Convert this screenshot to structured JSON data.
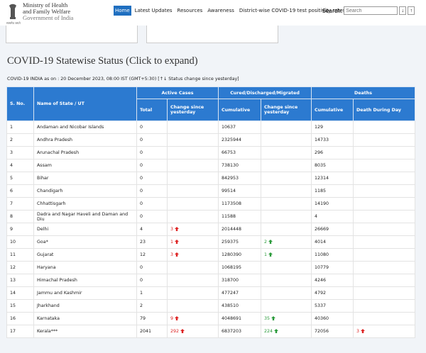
{
  "header": {
    "ministry": [
      "Ministry of Health",
      "and Family Welfare",
      "Government of India"
    ],
    "emblem_motto": "सत्यमेव जयते"
  },
  "nav": {
    "links": [
      "Home",
      "Latest Updates",
      "Resources",
      "Awareness",
      "District-wise COVID-19 test positivity rates"
    ],
    "search_label": "Search:",
    "search_placeholder": "Search",
    "buttons": [
      "↓",
      "↑"
    ]
  },
  "section": {
    "title": "COVID-19 Statewise Status (Click to expand)",
    "subtitle": "COVID-19 INDIA as on : 20 December 2023, 08:00 IST (GMT+5:30) [↑↓ Status change since yesterday]"
  },
  "table": {
    "sno": "S. No.",
    "name": "Name of State / UT",
    "groups": [
      "Active Cases",
      "Cured/Discharged/Migrated",
      "Deaths"
    ],
    "subheaders": [
      "Total",
      "Change since yesterday",
      "Cumulative",
      "Change since yesterday",
      "Cumulative",
      "Death During Day"
    ],
    "rows": [
      [
        1,
        "Andaman and Nicobar Islands",
        0,
        null,
        10637,
        null,
        129,
        null
      ],
      [
        2,
        "Andhra Pradesh",
        0,
        null,
        2325944,
        null,
        14733,
        null
      ],
      [
        3,
        "Arunachal Pradesh",
        0,
        null,
        66753,
        null,
        296,
        null
      ],
      [
        4,
        "Assam",
        0,
        null,
        738130,
        null,
        8035,
        null
      ],
      [
        5,
        "Bihar",
        0,
        null,
        842953,
        null,
        12314,
        null
      ],
      [
        6,
        "Chandigarh",
        0,
        null,
        99514,
        null,
        1185,
        null
      ],
      [
        7,
        "Chhattisgarh",
        0,
        null,
        1173508,
        null,
        14190,
        null
      ],
      [
        8,
        "Dadra and Nagar Haveli and Daman and Diu",
        0,
        null,
        11588,
        null,
        4,
        null
      ],
      [
        9,
        "Delhi",
        4,
        3,
        2014448,
        null,
        26669,
        null
      ],
      [
        10,
        "Goa*",
        23,
        1,
        259375,
        2,
        4014,
        null
      ],
      [
        11,
        "Gujarat",
        12,
        3,
        1280390,
        1,
        11080,
        null
      ],
      [
        12,
        "Haryana",
        0,
        null,
        1068195,
        null,
        10779,
        null
      ],
      [
        13,
        "Himachal Pradesh",
        0,
        null,
        318700,
        null,
        4246,
        null
      ],
      [
        14,
        "Jammu and Kashmir",
        1,
        null,
        477247,
        null,
        4792,
        null
      ],
      [
        15,
        "Jharkhand",
        2,
        null,
        438510,
        null,
        5337,
        null
      ],
      [
        16,
        "Karnataka",
        79,
        9,
        4048691,
        35,
        40360,
        null
      ],
      [
        17,
        "Kerala***",
        2041,
        292,
        6837203,
        224,
        72056,
        3
      ]
    ]
  }
}
